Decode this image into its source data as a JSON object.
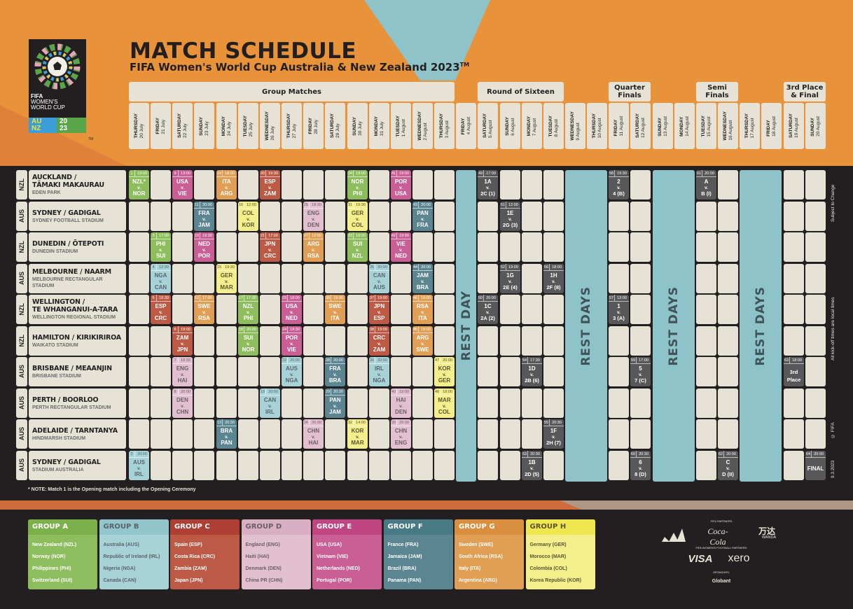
{
  "header": {
    "title": "MATCH SCHEDULE",
    "subtitle": "FIFA Women's World Cup Australia & New Zealand 2023",
    "subtitle_tm": "TM",
    "logo": {
      "line1": "FIFA",
      "line2": "WOMEN'S",
      "line3": "WORLD CUP",
      "au": "AU",
      "nz": "NZ",
      "y1": "20",
      "y2": "23",
      "tm": "TM"
    }
  },
  "phases": [
    {
      "label": "Group Matches",
      "first_day": 0,
      "last_day": 14
    },
    {
      "label": "Round of Sixteen",
      "first_day": 16,
      "last_day": 19
    },
    {
      "label": "Quarter\nFinals",
      "first_day": 22,
      "last_day": 23
    },
    {
      "label": "Semi\nFinals",
      "first_day": 26,
      "last_day": 27
    },
    {
      "label": "3rd Place\n& Final",
      "first_day": 30,
      "last_day": 31
    }
  ],
  "days": [
    {
      "weekday": "THURSDAY",
      "date": "20 July"
    },
    {
      "weekday": "FRIDAY",
      "date": "21 July"
    },
    {
      "weekday": "SATURDAY",
      "date": "22 July"
    },
    {
      "weekday": "SUNDAY",
      "date": "23 July"
    },
    {
      "weekday": "MONDAY",
      "date": "24 July"
    },
    {
      "weekday": "TUESDAY",
      "date": "25 July"
    },
    {
      "weekday": "WEDNESDAY",
      "date": "26 July"
    },
    {
      "weekday": "THURSDAY",
      "date": "27 July"
    },
    {
      "weekday": "FRIDAY",
      "date": "28 July"
    },
    {
      "weekday": "SATURDAY",
      "date": "29 July"
    },
    {
      "weekday": "SUNDAY",
      "date": "30 July"
    },
    {
      "weekday": "MONDAY",
      "date": "31 July"
    },
    {
      "weekday": "TUESDAY",
      "date": "1 August"
    },
    {
      "weekday": "WEDNESDAY",
      "date": "2 August"
    },
    {
      "weekday": "THURSDAY",
      "date": "3 August"
    },
    {
      "weekday": "FRIDAY",
      "date": "4 August"
    },
    {
      "weekday": "SATURDAY",
      "date": "5 August"
    },
    {
      "weekday": "SUNDAY",
      "date": "6 August"
    },
    {
      "weekday": "MONDAY",
      "date": "7 August"
    },
    {
      "weekday": "TUESDAY",
      "date": "8 August"
    },
    {
      "weekday": "WEDNESDAY",
      "date": "9 August"
    },
    {
      "weekday": "THURSDAY",
      "date": "10 August"
    },
    {
      "weekday": "FRIDAY",
      "date": "11 August"
    },
    {
      "weekday": "SATURDAY",
      "date": "12 August"
    },
    {
      "weekday": "SUNDAY",
      "date": "13 August"
    },
    {
      "weekday": "MONDAY",
      "date": "14 August"
    },
    {
      "weekday": "TUESDAY",
      "date": "15 August"
    },
    {
      "weekday": "WEDNESDAY",
      "date": "16 August"
    },
    {
      "weekday": "THURSDAY",
      "date": "17 August"
    },
    {
      "weekday": "FRIDAY",
      "date": "18 August"
    },
    {
      "weekday": "SATURDAY",
      "date": "19 August"
    },
    {
      "weekday": "SUNDAY",
      "date": "20 August"
    }
  ],
  "rest_days": [
    {
      "label": "REST DAY",
      "days": [
        15
      ]
    },
    {
      "label": "REST DAYS",
      "days": [
        20,
        21
      ]
    },
    {
      "label": "REST DAYS",
      "days": [
        24,
        25
      ]
    },
    {
      "label": "REST DAYS",
      "days": [
        28,
        29
      ]
    }
  ],
  "venues": [
    {
      "country": "NZL",
      "name": "AUCKLAND /",
      "name2": "TĀMAKI MAKAURAU",
      "stadium": "EDEN PARK"
    },
    {
      "country": "AUS",
      "name": "SYDNEY / GADIGAL",
      "name2": "",
      "stadium": "SYDNEY FOOTBALL STADIUM"
    },
    {
      "country": "NZL",
      "name": "DUNEDIN / ŌTEPOTI",
      "name2": "",
      "stadium": "DUNEDIN STADIUM"
    },
    {
      "country": "AUS",
      "name": "MELBOURNE / NAARM",
      "name2": "",
      "stadium": "MELBOURNE RECTANGULAR STADIUM"
    },
    {
      "country": "NZL",
      "name": "WELLINGTON /",
      "name2": "TE WHANGANUI-A-TARA",
      "stadium": "WELLINGTON REGIONAL STADIUM"
    },
    {
      "country": "NZL",
      "name": "HAMILTON / KIRIKIRIROA",
      "name2": "",
      "stadium": "WAIKATO STADIUM"
    },
    {
      "country": "AUS",
      "name": "BRISBANE / MEAANJIN",
      "name2": "",
      "stadium": "BRISBANE STADIUM"
    },
    {
      "country": "AUS",
      "name": "PERTH / BOORLOO",
      "name2": "",
      "stadium": "PERTH RECTANGULAR STADIUM"
    },
    {
      "country": "AUS",
      "name": "ADELAIDE / TARNTANYA",
      "name2": "",
      "stadium": "HINDMARSH STADIUM"
    },
    {
      "country": "AUS",
      "name": "SYDNEY / GADIGAL",
      "name2": "",
      "stadium": "STADIUM AUSTRALIA"
    }
  ],
  "matches": [
    {
      "no": "1",
      "time": "19:00",
      "home": "NZL*",
      "away": "NOR",
      "group": "A",
      "venue": 0,
      "day": 0
    },
    {
      "no": "2",
      "time": "20:00",
      "home": "AUS",
      "away": "IRL",
      "group": "B",
      "venue": 9,
      "day": 0
    },
    {
      "no": "3",
      "time": "17:00",
      "home": "PHI",
      "away": "SUI",
      "group": "A",
      "venue": 2,
      "day": 1
    },
    {
      "no": "4",
      "time": "12:30",
      "home": "NGA",
      "away": "CAN",
      "group": "B",
      "venue": 3,
      "day": 1
    },
    {
      "no": "5",
      "time": "19:30",
      "home": "ESP",
      "away": "CRC",
      "group": "C",
      "venue": 4,
      "day": 1
    },
    {
      "no": "6",
      "time": "19:00",
      "home": "ZAM",
      "away": "JPN",
      "group": "C",
      "venue": 5,
      "day": 2
    },
    {
      "no": "7",
      "time": "18:30",
      "home": "ENG",
      "away": "HAI",
      "group": "D",
      "venue": 6,
      "day": 2
    },
    {
      "no": "8",
      "time": "20:00",
      "home": "DEN",
      "away": "CHN",
      "group": "D",
      "venue": 7,
      "day": 2
    },
    {
      "no": "9",
      "time": "13:00",
      "home": "USA",
      "away": "VIE",
      "group": "E",
      "venue": 0,
      "day": 2
    },
    {
      "no": "10",
      "time": "19:30",
      "home": "NED",
      "away": "POR",
      "group": "E",
      "venue": 2,
      "day": 3
    },
    {
      "no": "11",
      "time": "20:00",
      "home": "FRA",
      "away": "JAM",
      "group": "F",
      "venue": 1,
      "day": 3
    },
    {
      "no": "12",
      "time": "17:00",
      "home": "SWE",
      "away": "RSA",
      "group": "G",
      "venue": 4,
      "day": 3
    },
    {
      "no": "13",
      "time": "20:30",
      "home": "BRA",
      "away": "PAN",
      "group": "F",
      "venue": 8,
      "day": 4
    },
    {
      "no": "14",
      "time": "18:00",
      "home": "ITA",
      "away": "ARG",
      "group": "G",
      "venue": 0,
      "day": 4
    },
    {
      "no": "15",
      "time": "19:30",
      "home": "GER",
      "away": "MAR",
      "group": "H",
      "venue": 3,
      "day": 4
    },
    {
      "no": "16",
      "time": "12:00",
      "home": "COL",
      "away": "KOR",
      "group": "H",
      "venue": 1,
      "day": 5
    },
    {
      "no": "17",
      "time": "17:30",
      "home": "NZL",
      "away": "PHI",
      "group": "A",
      "venue": 4,
      "day": 5
    },
    {
      "no": "18",
      "time": "20:00",
      "home": "SUI",
      "away": "NOR",
      "group": "A",
      "venue": 5,
      "day": 5
    },
    {
      "no": "19",
      "time": "20:00",
      "home": "CAN",
      "away": "IRL",
      "group": "B",
      "venue": 7,
      "day": 6
    },
    {
      "no": "20",
      "time": "19:30",
      "home": "ESP",
      "away": "ZAM",
      "group": "C",
      "venue": 0,
      "day": 6
    },
    {
      "no": "21",
      "time": "17:00",
      "home": "JPN",
      "away": "CRC",
      "group": "C",
      "venue": 2,
      "day": 6
    },
    {
      "no": "22",
      "time": "20:00",
      "home": "AUS",
      "away": "NGA",
      "group": "B",
      "venue": 6,
      "day": 7
    },
    {
      "no": "23",
      "time": "18:00",
      "home": "USA",
      "away": "NED",
      "group": "E",
      "venue": 4,
      "day": 7
    },
    {
      "no": "24",
      "time": "19:30",
      "home": "POR",
      "away": "VIE",
      "group": "E",
      "venue": 5,
      "day": 7
    },
    {
      "no": "25",
      "time": "18:30",
      "home": "ENG",
      "away": "DEN",
      "group": "D",
      "venue": 1,
      "day": 8
    },
    {
      "no": "26",
      "time": "20:30",
      "home": "CHN",
      "away": "HAI",
      "group": "D",
      "venue": 8,
      "day": 8
    },
    {
      "no": "27",
      "time": "12:00",
      "home": "ARG",
      "away": "RSA",
      "group": "G",
      "venue": 2,
      "day": 8
    },
    {
      "no": "28",
      "time": "20:00",
      "home": "FRA",
      "away": "BRA",
      "group": "F",
      "venue": 6,
      "day": 9
    },
    {
      "no": "29",
      "time": "20:30",
      "home": "PAN",
      "away": "JAM",
      "group": "F",
      "venue": 7,
      "day": 9
    },
    {
      "no": "30",
      "time": "19:30",
      "home": "SWE",
      "away": "ITA",
      "group": "G",
      "venue": 4,
      "day": 9
    },
    {
      "no": "31",
      "time": "19:30",
      "home": "GER",
      "away": "COL",
      "group": "H",
      "venue": 1,
      "day": 10
    },
    {
      "no": "32",
      "time": "14:00",
      "home": "KOR",
      "away": "MAR",
      "group": "H",
      "venue": 8,
      "day": 10
    },
    {
      "no": "33",
      "time": "19:00",
      "home": "SUI",
      "away": "NZL",
      "group": "A",
      "venue": 2,
      "day": 10
    },
    {
      "no": "34",
      "time": "19:00",
      "home": "NOR",
      "away": "PHI",
      "group": "A",
      "venue": 0,
      "day": 10
    },
    {
      "no": "35",
      "time": "20:00",
      "home": "CAN",
      "away": "AUS",
      "group": "B",
      "venue": 3,
      "day": 11
    },
    {
      "no": "36",
      "time": "20:00",
      "home": "IRL",
      "away": "NGA",
      "group": "B",
      "venue": 6,
      "day": 11
    },
    {
      "no": "37",
      "time": "19:00",
      "home": "JPN",
      "away": "ESP",
      "group": "C",
      "venue": 4,
      "day": 11
    },
    {
      "no": "38",
      "time": "19:00",
      "home": "CRC",
      "away": "ZAM",
      "group": "C",
      "venue": 5,
      "day": 11
    },
    {
      "no": "39",
      "time": "20:30",
      "home": "CHN",
      "away": "ENG",
      "group": "D",
      "venue": 8,
      "day": 12
    },
    {
      "no": "40",
      "time": "19:00",
      "home": "HAI",
      "away": "DEN",
      "group": "D",
      "venue": 7,
      "day": 12
    },
    {
      "no": "41",
      "time": "19:00",
      "home": "POR",
      "away": "USA",
      "group": "E",
      "venue": 0,
      "day": 12
    },
    {
      "no": "42",
      "time": "19:00",
      "home": "VIE",
      "away": "NED",
      "group": "E",
      "venue": 2,
      "day": 12
    },
    {
      "no": "43",
      "time": "20:00",
      "home": "PAN",
      "away": "FRA",
      "group": "F",
      "venue": 1,
      "day": 13
    },
    {
      "no": "44",
      "time": "20:00",
      "home": "JAM",
      "away": "BRA",
      "group": "F",
      "venue": 3,
      "day": 13
    },
    {
      "no": "45",
      "time": "19:00",
      "home": "ARG",
      "away": "SWE",
      "group": "G",
      "venue": 5,
      "day": 13
    },
    {
      "no": "46",
      "time": "19:00",
      "home": "RSA",
      "away": "ITA",
      "group": "G",
      "venue": 4,
      "day": 13
    },
    {
      "no": "47",
      "time": "20:00",
      "home": "KOR",
      "away": "GER",
      "group": "H",
      "venue": 6,
      "day": 14
    },
    {
      "no": "48",
      "time": "18:00",
      "home": "MAR",
      "away": "COL",
      "group": "H",
      "venue": 7,
      "day": 14
    },
    {
      "no": "49",
      "time": "17:00",
      "home": "1A",
      "away": "2C (1)",
      "group": "KO",
      "venue": 0,
      "day": 16
    },
    {
      "no": "50",
      "time": "20:00",
      "home": "1C",
      "away": "2A (2)",
      "group": "KO",
      "venue": 4,
      "day": 16
    },
    {
      "no": "51",
      "time": "12:00",
      "home": "1E",
      "away": "2G (3)",
      "group": "KO",
      "venue": 1,
      "day": 17
    },
    {
      "no": "52",
      "time": "19:00",
      "home": "1G",
      "away": "2E (4)",
      "group": "KO",
      "venue": 3,
      "day": 17
    },
    {
      "no": "53",
      "time": "20:30",
      "home": "1B",
      "away": "2D (5)",
      "group": "KO",
      "venue": 9,
      "day": 18
    },
    {
      "no": "54",
      "time": "17:30",
      "home": "1D",
      "away": "2B (6)",
      "group": "KO",
      "venue": 6,
      "day": 18
    },
    {
      "no": "55",
      "time": "20:30",
      "home": "1F",
      "away": "2H (7)",
      "group": "KO",
      "venue": 8,
      "day": 19
    },
    {
      "no": "56",
      "time": "18:00",
      "home": "1H",
      "away": "2F (8)",
      "group": "KO",
      "venue": 3,
      "day": 19
    },
    {
      "no": "57",
      "time": "13:00",
      "home": "1",
      "away": "3 (A)",
      "group": "KO",
      "venue": 4,
      "day": 22
    },
    {
      "no": "58",
      "time": "19:30",
      "home": "2",
      "away": "4 (B)",
      "group": "KO",
      "venue": 0,
      "day": 22
    },
    {
      "no": "59",
      "time": "17:00",
      "home": "5",
      "away": "7 (C)",
      "group": "KO",
      "venue": 6,
      "day": 23
    },
    {
      "no": "60",
      "time": "20:30",
      "home": "6",
      "away": "8 (D)",
      "group": "KO",
      "venue": 9,
      "day": 23
    },
    {
      "no": "61",
      "time": "20:00",
      "home": "A",
      "away": "B (I)",
      "group": "KO",
      "venue": 0,
      "day": 26
    },
    {
      "no": "62",
      "time": "20:00",
      "home": "C",
      "away": "D (II)",
      "group": "KO",
      "venue": 9,
      "day": 27
    },
    {
      "no": "63",
      "time": "18:00",
      "label": "3rd Place",
      "group": "KO",
      "venue": 6,
      "day": 30
    },
    {
      "no": "64",
      "time": "20:00",
      "label": "FINAL",
      "group": "KO",
      "venue": 9,
      "day": 31
    }
  ],
  "versus": "v.",
  "styles": {
    "A": {
      "color": "#8dbd5c",
      "header": "#7bb04a",
      "text": "#ffffff"
    },
    "B": {
      "color": "#a7d3d8",
      "header": "#93c6cc",
      "text": "#5a6468"
    },
    "C": {
      "color": "#bd5a45",
      "header": "#ad3f34",
      "text": "#ffffff"
    },
    "D": {
      "color": "#e3c0d0",
      "header": "#d9afc3",
      "text": "#6a6065"
    },
    "E": {
      "color": "#c95f94",
      "header": "#c04582",
      "text": "#ffffff"
    },
    "F": {
      "color": "#5a8591",
      "header": "#477a85",
      "text": "#ffffff"
    },
    "G": {
      "color": "#e09f55",
      "header": "#d98f3d",
      "text": "#ffffff"
    },
    "H": {
      "color": "#f4ee8c",
      "header": "#efe650",
      "text": "#5a5530"
    },
    "KO": {
      "color": "#58585a",
      "header": "#58585a",
      "text": "#ffffff"
    }
  },
  "side_notes": [
    "Subject to Change",
    "All kick-off times are local times",
    "© FIFA",
    "9.3.2023"
  ],
  "note": "* NOTE: Match 1 is the Opening match including the Opening Ceremony",
  "groups": [
    {
      "key": "A",
      "name": "GROUP A",
      "teams": [
        "New Zealand (NZL)",
        "Norway (NOR)",
        "Philippines (PHI)",
        "Switzerland (SUI)"
      ]
    },
    {
      "key": "B",
      "name": "GROUP B",
      "teams": [
        "Australia (AUS)",
        "Republic of Ireland (IRL)",
        "Nigeria (NGA)",
        "Canada (CAN)"
      ]
    },
    {
      "key": "C",
      "name": "GROUP C",
      "teams": [
        "Spain (ESP)",
        "Costa Rica (CRC)",
        "Zambia (ZAM)",
        "Japan (JPN)"
      ]
    },
    {
      "key": "D",
      "name": "GROUP D",
      "teams": [
        "England (ENG)",
        "Haiti (HAI)",
        "Denmark (DEN)",
        "China PR (CHN)"
      ]
    },
    {
      "key": "E",
      "name": "GROUP E",
      "teams": [
        "USA (USA)",
        "Vietnam (VIE)",
        "Netherlands (NED)",
        "Portugal (POR)"
      ]
    },
    {
      "key": "F",
      "name": "GROUP F",
      "teams": [
        "France (FRA)",
        "Jamaica (JAM)",
        "Brazil (BRA)",
        "Panama (PAN)"
      ]
    },
    {
      "key": "G",
      "name": "GROUP G",
      "teams": [
        "Sweden (SWE)",
        "South Africa (RSA)",
        "Italy (ITA)",
        "Argentina (ARG)"
      ]
    },
    {
      "key": "H",
      "name": "GROUP H",
      "teams": [
        "Germany (GER)",
        "Morocco (MAR)",
        "Colombia (COL)",
        "Korea Republic (KOR)"
      ]
    }
  ],
  "sponsors": {
    "fifa_partners_label": "FIFA PARTNERS",
    "womens_partners_label": "FIFA WOMEN'S FOOTBALL PARTNERS",
    "sponsors_label": "SPONSORS:",
    "adidas": "adidas",
    "cocacola": "Coca-Cola",
    "wanda_cn": "万达",
    "wanda": "WANDA",
    "visa": "VISA",
    "xero": "xero",
    "globant": "Globant"
  },
  "colors": {
    "background": "#e8923a",
    "teal": "#8ec3c9",
    "dark": "#231f20",
    "cell": "#e6e3d6"
  }
}
